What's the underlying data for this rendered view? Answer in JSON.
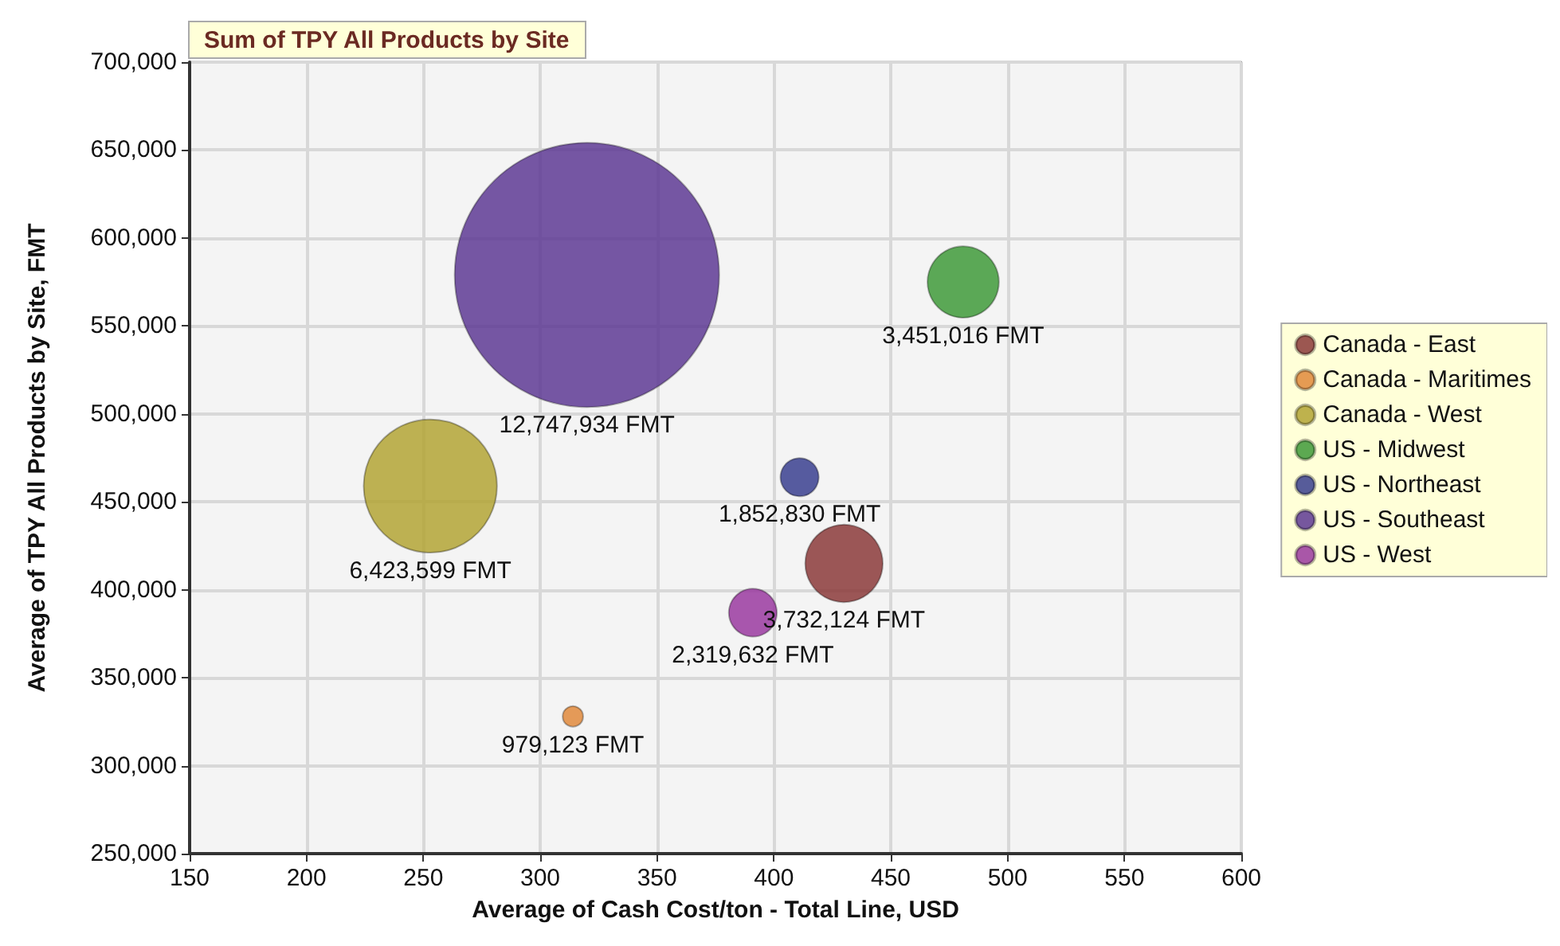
{
  "chart_data": {
    "type": "bubble",
    "title": "Sum of TPY All Products by Site",
    "xlabel": "Average of Cash Cost/ton - Total Line, USD",
    "ylabel": "Average of TPY All Products by Site, FMT",
    "xlim": [
      150,
      600
    ],
    "xticks": [
      150,
      200,
      250,
      300,
      350,
      400,
      450,
      500,
      550,
      600
    ],
    "ylim": [
      250000,
      700000
    ],
    "yticks": [
      {
        "value": 250000,
        "label": "250,000"
      },
      {
        "value": 300000,
        "label": "300,000"
      },
      {
        "value": 350000,
        "label": "350,000"
      },
      {
        "value": 400000,
        "label": "400,000"
      },
      {
        "value": 450000,
        "label": "450,000"
      },
      {
        "value": 500000,
        "label": "500,000"
      },
      {
        "value": 550000,
        "label": "550,000"
      },
      {
        "value": 600000,
        "label": "600,000"
      },
      {
        "value": 650000,
        "label": "650,000"
      },
      {
        "value": 700000,
        "label": "700,000"
      }
    ],
    "grid": true,
    "legend": "right",
    "series": [
      {
        "name": "Canada - East",
        "color": "#8b3a3a",
        "x": [
          430
        ],
        "values": [
          415000
        ],
        "sizes": [
          0.086
        ]
      },
      {
        "name": "Canada - Maritimes",
        "color": "#e08a3c",
        "x": [
          314
        ],
        "values": [
          328000
        ],
        "sizes": [
          0.006
        ]
      },
      {
        "name": "Canada - West",
        "color": "#b3a535",
        "x": [
          253
        ],
        "values": [
          459000
        ],
        "sizes": [
          0.254
        ]
      },
      {
        "name": "US - Midwest",
        "color": "#3f9a3a",
        "x": [
          481
        ],
        "values": [
          575000
        ],
        "sizes": [
          0.073
        ]
      },
      {
        "name": "US - Northeast",
        "color": "#3a3f8f",
        "x": [
          411
        ],
        "values": [
          464000
        ],
        "sizes": [
          0.021
        ]
      },
      {
        "name": "US - Southeast",
        "color": "#5e3a94",
        "x": [
          320
        ],
        "values": [
          579000
        ],
        "sizes": [
          1
        ]
      },
      {
        "name": "US - West",
        "color": "#9a3aa0",
        "x": [
          391
        ],
        "values": [
          387000
        ],
        "sizes": [
          0.033
        ]
      }
    ],
    "annotations": [
      "3,732,124 FMT",
      "979,123 FMT",
      "6,423,599 FMT",
      "3,451,016 FMT",
      "1,852,830 FMT",
      "12,747,934 FMT",
      "2,319,632 FMT"
    ]
  }
}
